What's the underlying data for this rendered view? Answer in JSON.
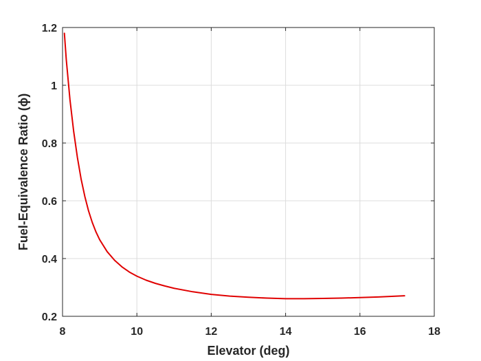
{
  "chart_data": {
    "type": "line",
    "title": "",
    "xlabel": "Elevator (deg)",
    "ylabel": "Fuel-Equivalence Ratio (ϕ)",
    "xlim": [
      8,
      18
    ],
    "ylim": [
      0.2,
      1.2
    ],
    "xticks": [
      8,
      10,
      12,
      14,
      16,
      18
    ],
    "yticks": [
      0.2,
      0.4,
      0.6,
      0.8,
      1.0,
      1.2
    ],
    "xtick_labels": [
      "8",
      "10",
      "12",
      "14",
      "16",
      "18"
    ],
    "ytick_labels": [
      "0.2",
      "0.4",
      "0.6",
      "0.8",
      "1",
      "1.2"
    ],
    "grid": true,
    "series": [
      {
        "color": "#e00000",
        "x": [
          8.05,
          8.1,
          8.2,
          8.3,
          8.4,
          8.5,
          8.6,
          8.7,
          8.8,
          8.9,
          9.0,
          9.2,
          9.4,
          9.6,
          9.8,
          10.0,
          10.25,
          10.5,
          10.75,
          11.0,
          11.5,
          12.0,
          12.5,
          13.0,
          13.5,
          14.0,
          14.5,
          15.0,
          15.5,
          16.0,
          16.5,
          17.0,
          17.2
        ],
        "y": [
          1.18,
          1.09,
          0.95,
          0.84,
          0.75,
          0.675,
          0.615,
          0.565,
          0.525,
          0.492,
          0.465,
          0.424,
          0.394,
          0.371,
          0.353,
          0.339,
          0.325,
          0.314,
          0.305,
          0.297,
          0.285,
          0.276,
          0.27,
          0.266,
          0.263,
          0.261,
          0.261,
          0.262,
          0.263,
          0.265,
          0.267,
          0.27,
          0.271
        ]
      }
    ]
  }
}
